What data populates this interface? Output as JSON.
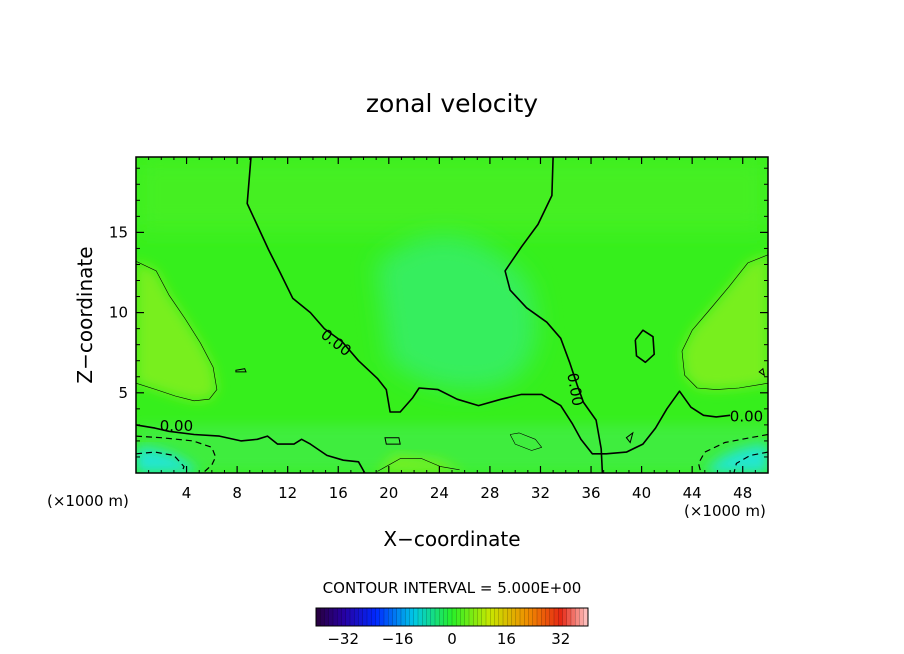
{
  "chart_data": {
    "type": "heatmap",
    "title": "zonal velocity",
    "xlabel": "X−coordinate",
    "ylabel": "Z−coordinate",
    "x_unit_left": "(×1000 m)",
    "x_unit_right": "(×1000 m)",
    "xlim": [
      0,
      50
    ],
    "ylim": [
      0,
      19.7
    ],
    "x_ticks": [
      4,
      8,
      12,
      16,
      20,
      24,
      28,
      32,
      36,
      40,
      44,
      48
    ],
    "x_tick_labels": [
      "4",
      "8",
      "12",
      "16",
      "20",
      "24",
      "28",
      "32",
      "36",
      "40",
      "44",
      "48"
    ],
    "y_ticks": [
      5,
      10,
      15
    ],
    "y_tick_labels": [
      "5",
      "10",
      "15"
    ],
    "contour_labels": [
      {
        "text": "0.00",
        "x": 3.2,
        "y": 2.9
      },
      {
        "text": "0.00",
        "x": 15.8,
        "y": 8.1
      },
      {
        "text": "0.00",
        "x": 34.7,
        "y": 5.2
      },
      {
        "text": "0.00",
        "x": 48.3,
        "y": 3.5
      }
    ],
    "contour_interval_text": "CONTOUR INTERVAL = 5.000E+00",
    "colorbar": {
      "range": [
        -40,
        40
      ],
      "ticks": [
        -32,
        -16,
        0,
        16,
        32
      ],
      "tick_labels": [
        "−32",
        "−16",
        "0",
        "16",
        "32"
      ]
    },
    "zero_contours": [
      [
        [
          9.1,
          19.7
        ],
        [
          8.8,
          16.8
        ],
        [
          10.5,
          13.9
        ],
        [
          11.4,
          12.5
        ],
        [
          12.4,
          10.9
        ],
        [
          13.8,
          10.0
        ],
        [
          14.9,
          9.0
        ],
        [
          16.3,
          8.2
        ],
        [
          17.6,
          7.0
        ],
        [
          19.1,
          5.9
        ],
        [
          19.8,
          5.2
        ],
        [
          20.1,
          3.8
        ],
        [
          20.9,
          3.8
        ],
        [
          21.9,
          4.7
        ],
        [
          22.4,
          5.3
        ],
        [
          23.9,
          5.2
        ],
        [
          25.4,
          4.6
        ],
        [
          27.1,
          4.2
        ],
        [
          28.9,
          4.6
        ],
        [
          30.5,
          4.9
        ],
        [
          32.1,
          4.9
        ],
        [
          33.6,
          4.2
        ],
        [
          34.5,
          3.1
        ],
        [
          35.2,
          2.1
        ],
        [
          36.1,
          1.2
        ],
        [
          37.2,
          1.2
        ],
        [
          38.8,
          1.3
        ],
        [
          40.1,
          1.8
        ],
        [
          41.1,
          2.8
        ],
        [
          42.0,
          4.0
        ],
        [
          43.0,
          5.1
        ],
        [
          43.9,
          4.1
        ],
        [
          44.9,
          3.6
        ],
        [
          45.9,
          3.5
        ],
        [
          47.0,
          3.6
        ]
      ],
      [
        [
          33.0,
          19.7
        ],
        [
          32.9,
          17.3
        ],
        [
          31.8,
          15.5
        ],
        [
          30.5,
          14.1
        ],
        [
          29.2,
          12.6
        ],
        [
          29.6,
          11.4
        ],
        [
          30.9,
          10.3
        ],
        [
          32.5,
          9.4
        ],
        [
          33.6,
          8.4
        ],
        [
          34.3,
          6.9
        ],
        [
          34.9,
          5.5
        ],
        [
          35.4,
          4.4
        ],
        [
          36.4,
          3.3
        ],
        [
          36.8,
          1.5
        ],
        [
          36.9,
          0
        ]
      ],
      [
        [
          0,
          3.0
        ],
        [
          1.5,
          2.8
        ],
        [
          2.6,
          2.6
        ],
        [
          4.6,
          2.4
        ],
        [
          6.6,
          2.3
        ],
        [
          8.3,
          2.0
        ],
        [
          9.6,
          2.1
        ],
        [
          10.4,
          2.3
        ],
        [
          11.2,
          1.8
        ],
        [
          12.5,
          1.8
        ],
        [
          13.1,
          2.1
        ],
        [
          13.8,
          1.8
        ],
        [
          15.1,
          1.1
        ],
        [
          16.4,
          0.8
        ],
        [
          17.6,
          0.7
        ],
        [
          18.1,
          0
        ]
      ],
      [
        [
          39.5,
          8.3
        ],
        [
          40.1,
          8.9
        ],
        [
          40.9,
          8.5
        ],
        [
          41.0,
          7.4
        ],
        [
          40.3,
          6.9
        ],
        [
          39.6,
          7.3
        ],
        [
          39.5,
          8.3
        ]
      ]
    ],
    "thin_contours": [
      [
        [
          0,
          13.2
        ],
        [
          1.6,
          12.6
        ],
        [
          2.6,
          11.1
        ],
        [
          3.9,
          9.6
        ],
        [
          5.1,
          8.1
        ],
        [
          6.1,
          6.6
        ],
        [
          6.4,
          5.2
        ],
        [
          5.8,
          4.6
        ],
        [
          4.6,
          4.5
        ],
        [
          3.1,
          4.8
        ],
        [
          1.6,
          5.2
        ],
        [
          0,
          5.6
        ]
      ],
      [
        [
          50,
          13.6
        ],
        [
          48.4,
          13.1
        ],
        [
          46.9,
          11.6
        ],
        [
          45.3,
          10.1
        ],
        [
          44.0,
          8.9
        ],
        [
          43.2,
          7.6
        ],
        [
          43.4,
          6.1
        ],
        [
          44.4,
          5.3
        ],
        [
          45.9,
          5.2
        ],
        [
          47.7,
          5.3
        ],
        [
          50,
          5.6
        ]
      ],
      [
        [
          19.1,
          0.1
        ],
        [
          20.9,
          0.9
        ],
        [
          22.6,
          0.9
        ],
        [
          24.1,
          0.4
        ],
        [
          25.6,
          0.2
        ]
      ],
      [
        [
          29.6,
          2.4
        ],
        [
          30.3,
          2.5
        ],
        [
          31.6,
          2.1
        ],
        [
          32.1,
          1.6
        ],
        [
          31.3,
          1.4
        ],
        [
          30.0,
          1.8
        ],
        [
          29.6,
          2.4
        ]
      ]
    ],
    "dashed_contours": [
      [
        [
          0,
          2.3
        ],
        [
          2.0,
          2.2
        ],
        [
          4.5,
          2.0
        ],
        [
          6.0,
          1.6
        ],
        [
          6.3,
          1.0
        ],
        [
          6.0,
          0.5
        ],
        [
          5.3,
          0
        ]
      ],
      [
        [
          0,
          1.2
        ],
        [
          1.5,
          1.3
        ],
        [
          3.0,
          1.1
        ],
        [
          3.8,
          0.4
        ],
        [
          3.6,
          0
        ]
      ],
      [
        [
          50,
          2.4
        ],
        [
          48.6,
          2.2
        ],
        [
          46.6,
          1.9
        ],
        [
          45.0,
          1.3
        ],
        [
          44.5,
          0.6
        ],
        [
          44.7,
          0
        ]
      ],
      [
        [
          50,
          1.3
        ],
        [
          48.6,
          1.1
        ],
        [
          47.5,
          0.6
        ],
        [
          47.3,
          0
        ]
      ]
    ],
    "small_closed_contours": [
      [
        [
          7.9,
          6.4
        ],
        [
          8.6,
          6.5
        ],
        [
          8.7,
          6.3
        ],
        [
          7.9,
          6.3
        ],
        [
          7.9,
          6.4
        ]
      ],
      [
        [
          19.7,
          2.2
        ],
        [
          20.8,
          2.2
        ],
        [
          20.9,
          1.8
        ],
        [
          19.8,
          1.8
        ],
        [
          19.7,
          2.2
        ]
      ],
      [
        [
          38.8,
          2.2
        ],
        [
          39.3,
          2.5
        ],
        [
          39.1,
          1.9
        ],
        [
          38.8,
          2.2
        ]
      ],
      [
        [
          49.3,
          6.3
        ],
        [
          49.6,
          6.5
        ],
        [
          49.7,
          6.1
        ],
        [
          49.3,
          6.3
        ]
      ]
    ],
    "field_colors": {
      "background": "#36ef1c",
      "core_highlight": "#37ef6a",
      "upper_wash": "#4ef026",
      "side_lobes": "#80f01d",
      "bottom_band": "#42ec4c",
      "bottom_corners": "#22e6d0"
    }
  }
}
